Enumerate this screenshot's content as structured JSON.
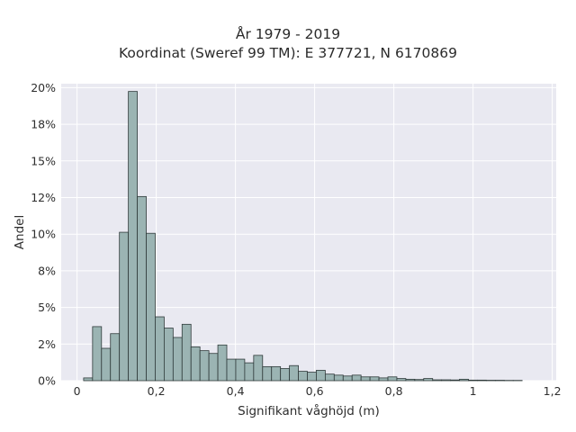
{
  "chart_data": {
    "type": "bar",
    "title": "År 1979 - 2019",
    "subtitle": "Koordinat (Sweref 99 TM): E 377721, N 6170869",
    "xlabel": "Signifikant våghöjd (m)",
    "ylabel": "Andel",
    "xlim": [
      -0.04,
      1.21
    ],
    "ylim": [
      0,
      0.2027
    ],
    "grid": true,
    "bar_color": "#9bb4b3",
    "edge_color": "#2f3a3a",
    "background_color": "#e9e9f1",
    "bin_width": 0.0226,
    "bin_start": 0.0166,
    "x_ticks": [
      {
        "value": 0,
        "label": "0"
      },
      {
        "value": 0.2,
        "label": "0,2"
      },
      {
        "value": 0.4,
        "label": "0,4"
      },
      {
        "value": 0.6,
        "label": "0,6"
      },
      {
        "value": 0.8,
        "label": "0,8"
      },
      {
        "value": 1.0,
        "label": "1"
      },
      {
        "value": 1.2,
        "label": "1,2"
      }
    ],
    "y_ticks": [
      {
        "value": 0,
        "label": "0%"
      },
      {
        "value": 0.025,
        "label": "2%"
      },
      {
        "value": 0.05,
        "label": "5%"
      },
      {
        "value": 0.075,
        "label": "8%"
      },
      {
        "value": 0.1,
        "label": "10%"
      },
      {
        "value": 0.125,
        "label": "12%"
      },
      {
        "value": 0.15,
        "label": "15%"
      },
      {
        "value": 0.175,
        "label": "18%"
      },
      {
        "value": 0.2,
        "label": "20%"
      }
    ],
    "values": [
      0.0019,
      0.0369,
      0.0221,
      0.0321,
      0.1013,
      0.1974,
      0.1257,
      0.1006,
      0.0436,
      0.0359,
      0.0295,
      0.0385,
      0.0231,
      0.0205,
      0.0186,
      0.0244,
      0.0147,
      0.0147,
      0.0122,
      0.0173,
      0.0096,
      0.0096,
      0.0083,
      0.0103,
      0.0064,
      0.0058,
      0.0071,
      0.0045,
      0.0038,
      0.0032,
      0.0038,
      0.0026,
      0.0026,
      0.0019,
      0.0026,
      0.0015,
      0.001,
      0.0008,
      0.0015,
      0.0006,
      0.0006,
      0.0005,
      0.001,
      0.0004,
      0.0004,
      0.0003,
      0.0003,
      0.0002,
      0.0002
    ]
  }
}
